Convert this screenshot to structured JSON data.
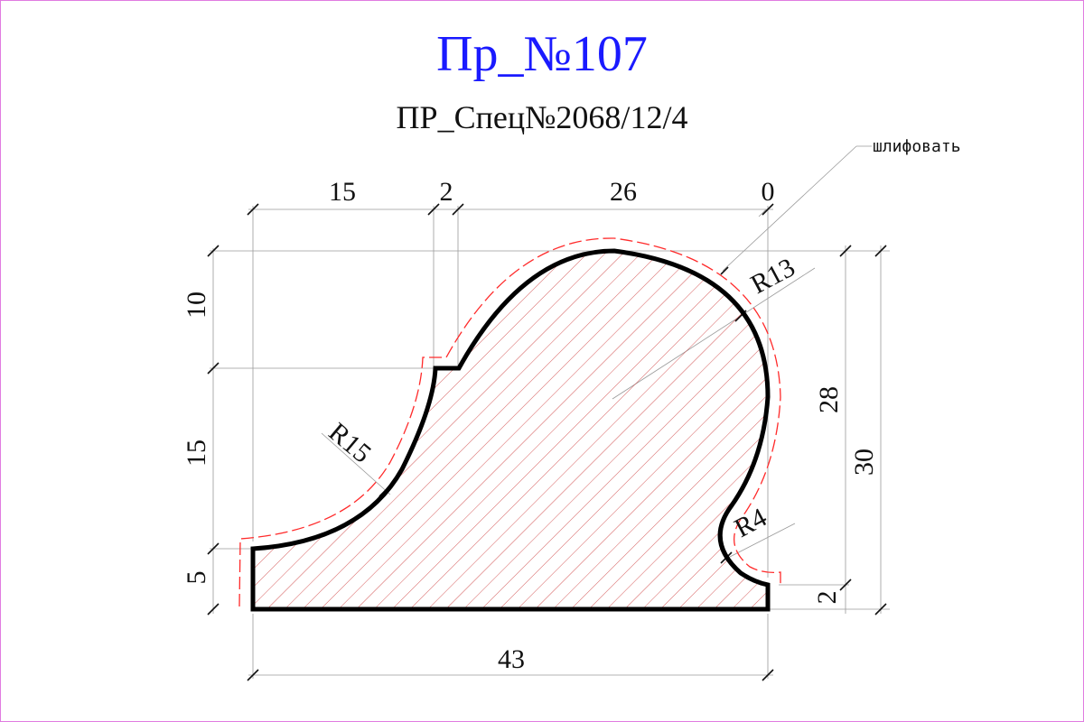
{
  "title": "Пр_№107",
  "subtitle": "ПР_Спец№2068/12/4",
  "note": "шлифовать",
  "dimensions": {
    "top": [
      "15",
      "2",
      "26",
      "0"
    ],
    "left": [
      "10",
      "15",
      "5"
    ],
    "right_inner": "28",
    "right_outer": "30",
    "right_small": "2",
    "bottom": "43"
  },
  "radii": {
    "r13": "R13",
    "r15": "R15",
    "r4": "R4"
  },
  "colors": {
    "title": "#1a1aff",
    "frame": "#e07be0",
    "sanding_line": "#ff2a2a",
    "hatch": "#d14848",
    "outline": "#000000",
    "extension": "#9a9a9a"
  }
}
